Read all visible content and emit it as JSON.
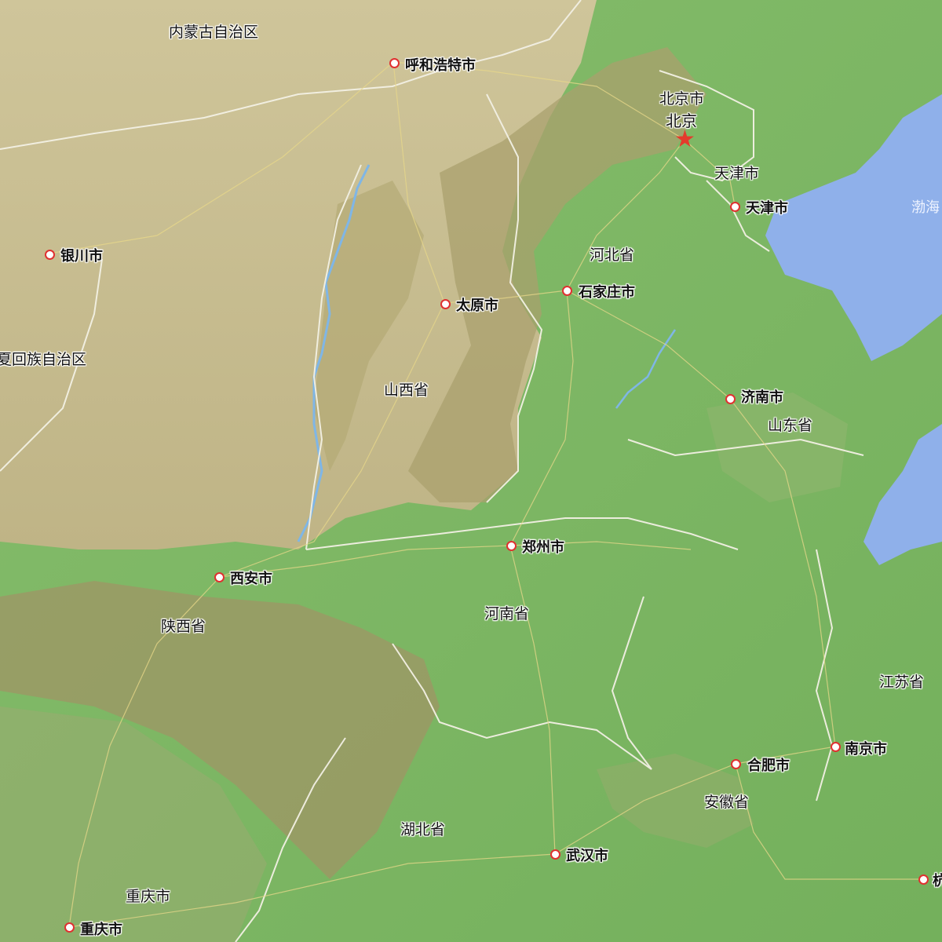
{
  "map": {
    "provinces": {
      "inner_mongolia": "内蒙古自治区",
      "ningxia": "夏回族自治区",
      "shanxi": "山西省",
      "hebei": "河北省",
      "shandong": "山东省",
      "henan": "河南省",
      "shaanxi": "陕西省",
      "hubei": "湖北省",
      "anhui": "安徽省",
      "jiangsu": "江苏省",
      "tianjin_region": "天津市",
      "chongqing_region": "重庆市",
      "beijing_region": "北京市"
    },
    "capital_label": "北京",
    "cities": {
      "hohhot": "呼和浩特市",
      "yinchuan": "银川市",
      "taiyuan": "太原市",
      "tianjin": "天津市",
      "shijiazhuang": "石家庄市",
      "jinan": "济南市",
      "zhengzhou": "郑州市",
      "xian": "西安市",
      "nanjing": "南京市",
      "hefei": "合肥市",
      "wuhan": "武汉市",
      "chongqing": "重庆市",
      "hangzhou_partial": "杭"
    },
    "sea": {
      "bohai": "渤海"
    },
    "colors": {
      "plain": "#7eb765",
      "plateau": "#c8bd8e",
      "mountain": "#9b9262",
      "sea": "#8fb0ea",
      "border": "#f2f0e4",
      "road": "#e8d88a",
      "river": "#7fb6e6",
      "city_dot": "#e03030",
      "capital_star": "#e43b2c"
    }
  }
}
